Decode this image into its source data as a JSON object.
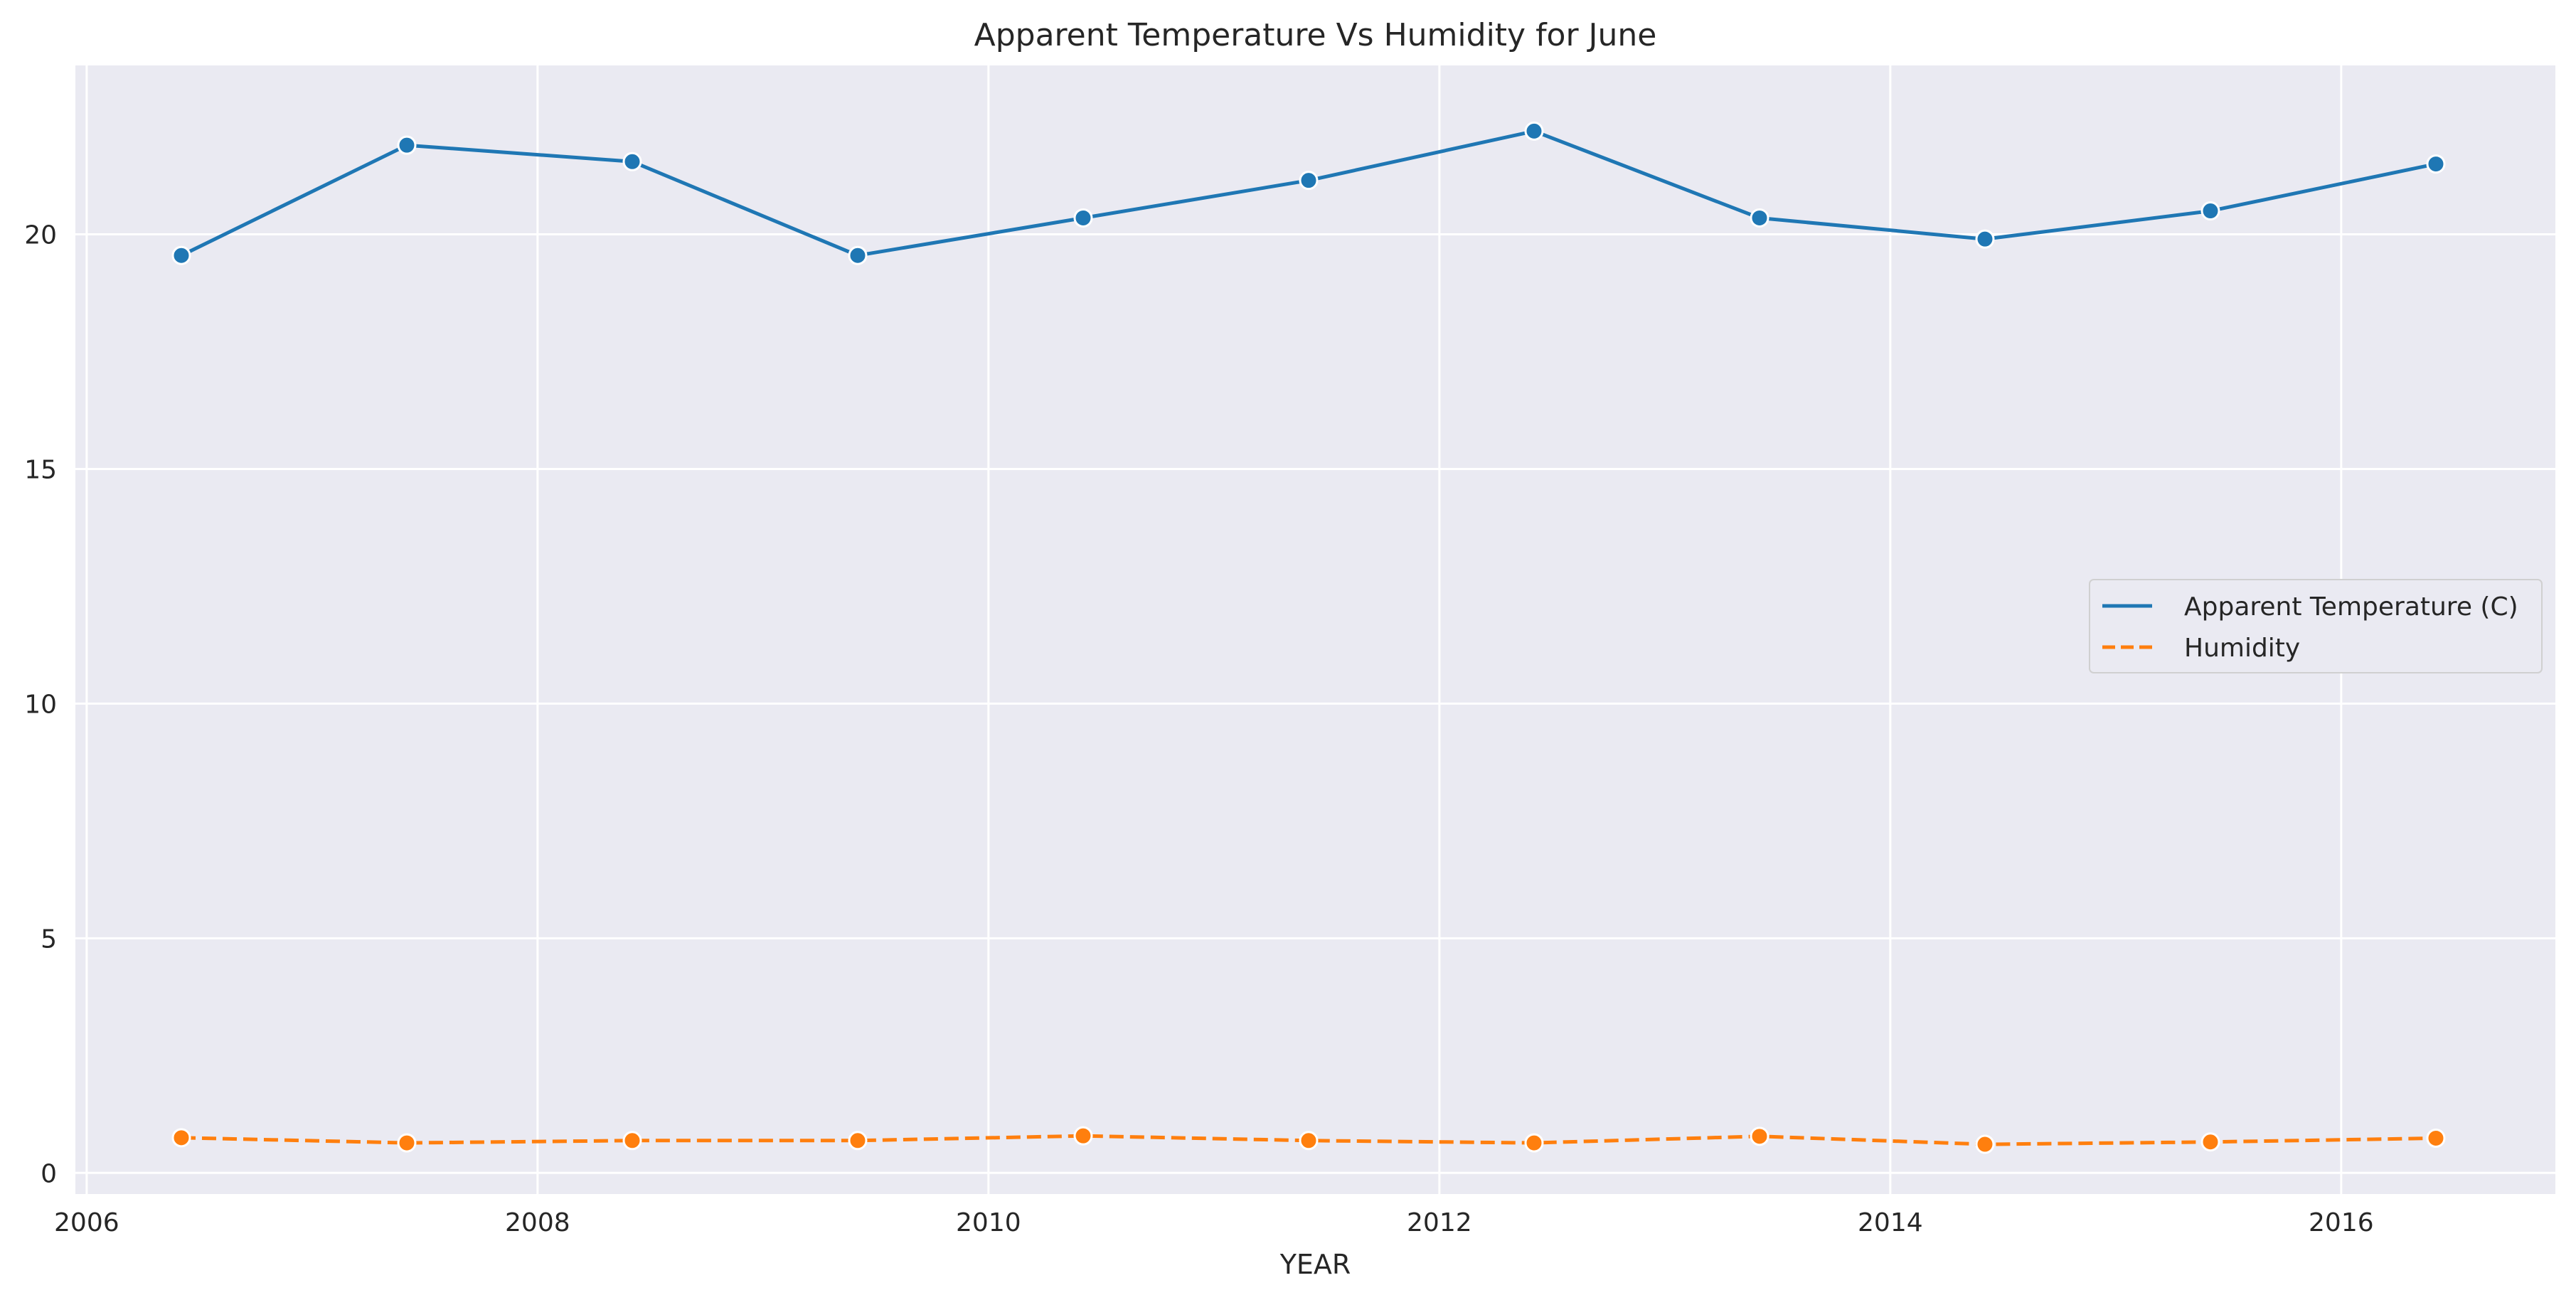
{
  "chart_data": {
    "type": "line",
    "title": "Apparent Temperature Vs Humidity for June",
    "xlabel": "YEAR",
    "ylabel": "",
    "x": [
      2006.42,
      2007.42,
      2008.42,
      2009.42,
      2010.42,
      2011.42,
      2012.42,
      2013.42,
      2014.42,
      2015.42,
      2016.42
    ],
    "xlim": [
      2005.95,
      2016.95
    ],
    "ylim": [
      -0.45,
      23.6
    ],
    "xticks": [
      2006,
      2008,
      2010,
      2012,
      2014,
      2016
    ],
    "xtick_labels": [
      "2006",
      "2008",
      "2010",
      "2012",
      "2014",
      "2016"
    ],
    "yticks": [
      0,
      5,
      10,
      15,
      20
    ],
    "ytick_labels": [
      "0",
      "5",
      "10",
      "15",
      "20"
    ],
    "grid": true,
    "legend_position": "center-right",
    "series": [
      {
        "name": "Apparent Temperature (C)",
        "color": "#1f77b4",
        "dash": "solid",
        "marker": "circle",
        "values": [
          19.55,
          21.9,
          21.55,
          19.55,
          20.35,
          21.15,
          22.2,
          20.35,
          19.9,
          20.5,
          21.5
        ]
      },
      {
        "name": "Humidity",
        "color": "#ff7f0e",
        "dash": "dashed",
        "marker": "circle",
        "values": [
          0.75,
          0.64,
          0.69,
          0.69,
          0.79,
          0.69,
          0.64,
          0.78,
          0.61,
          0.66,
          0.74
        ]
      }
    ],
    "colors": {
      "plot_background": "#eaeaf2",
      "grid": "#ffffff"
    }
  }
}
